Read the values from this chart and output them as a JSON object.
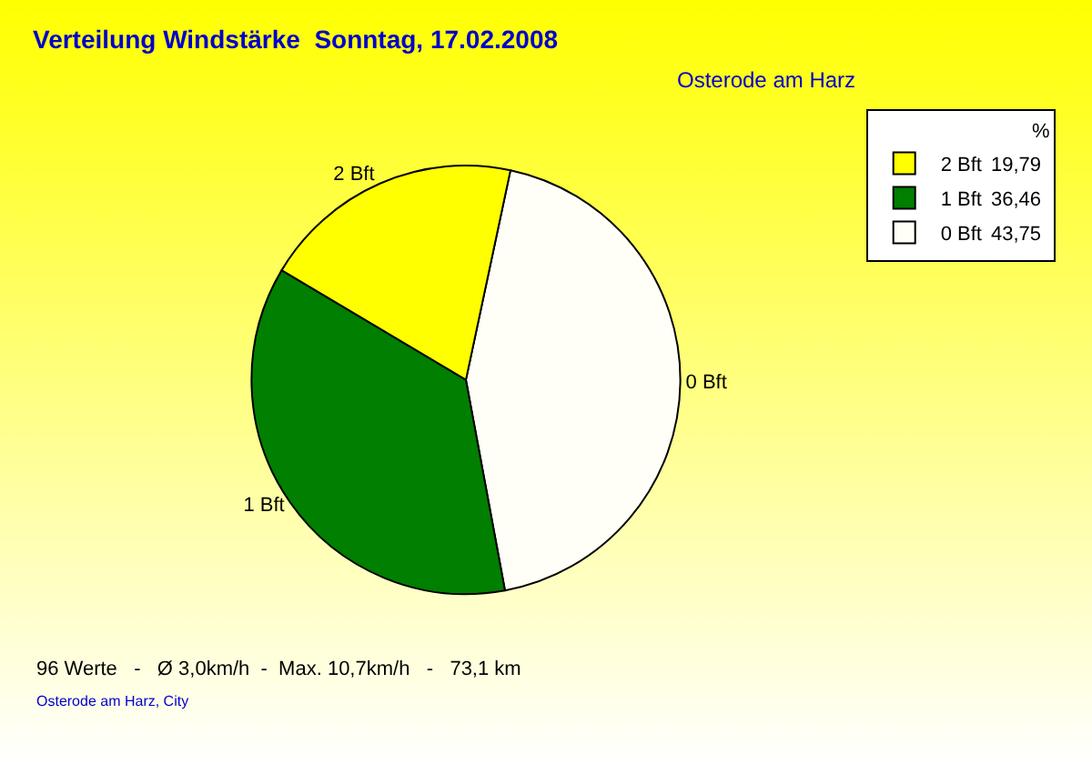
{
  "chart_data": {
    "type": "pie",
    "title": "Verteilung Windstärke  Sonntag, 17.02.2008",
    "subtitle": "Osterode am Harz",
    "categories": [
      "0 Bft",
      "1 Bft",
      "2 Bft"
    ],
    "values": [
      43.75,
      36.46,
      19.79
    ],
    "value_labels": [
      "43,75",
      "36,46",
      "19,79"
    ],
    "colors": [
      "#fffff8",
      "#007f00",
      "#ffff00"
    ],
    "legend": "top right",
    "legend_title": "%",
    "annotations": [
      "96 Werte   -   Ø 3,0km/h  -  Max. 10,7km/h   -   73,1 km",
      "Osterode am Harz, City"
    ]
  }
}
